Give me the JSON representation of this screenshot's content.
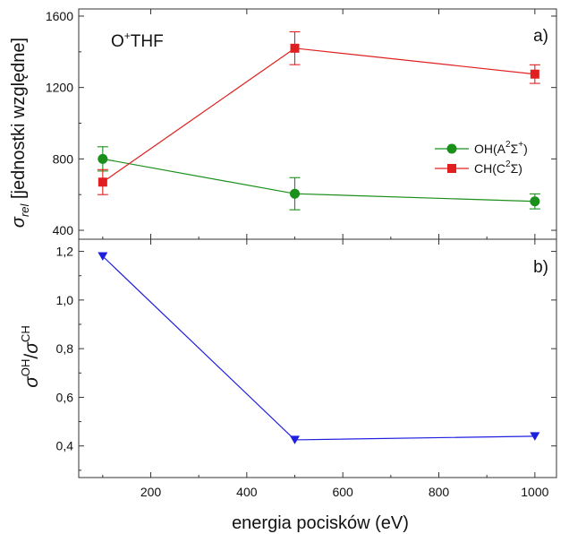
{
  "chart_data": [
    {
      "panel": "a)",
      "type": "line",
      "annotation": "O+THF",
      "ylabel": "σrel [jednostki względne]",
      "xlabel": "",
      "xlim": [
        50,
        1045
      ],
      "ylim": [
        350,
        1640
      ],
      "xticks": [
        200,
        400,
        600,
        800,
        1000
      ],
      "yticks": [
        400,
        800,
        1200,
        1600
      ],
      "ytick_labels": [
        "400",
        "800",
        "1200",
        "1600"
      ],
      "legend_position": "right",
      "series": [
        {
          "name": "OH(A2Σ+)",
          "color": "#1a8f1a",
          "marker": "circle",
          "x": [
            100,
            500,
            1000
          ],
          "y": [
            800,
            605,
            562
          ],
          "err": [
            68,
            90,
            42
          ]
        },
        {
          "name": "CH(C2Σ)",
          "color": "#e02020",
          "marker": "square",
          "x": [
            100,
            500,
            1000
          ],
          "y": [
            670,
            1420,
            1275
          ],
          "err": [
            70,
            92,
            52
          ]
        }
      ]
    },
    {
      "panel": "b)",
      "type": "line",
      "ylabel": "σOH/σCH",
      "xlabel": "energia pocisków (eV)",
      "xlim": [
        50,
        1045
      ],
      "ylim": [
        0.27,
        1.25
      ],
      "xticks": [
        200,
        400,
        600,
        800,
        1000
      ],
      "xtick_labels": [
        "200",
        "400",
        "600",
        "800",
        "1000"
      ],
      "yticks": [
        0.4,
        0.6,
        0.8,
        1.0,
        1.2
      ],
      "ytick_labels": [
        "0,4",
        "0,6",
        "0,8",
        "1,0",
        "1,2"
      ],
      "series": [
        {
          "color": "#1f1fe0",
          "marker": "triangle-down",
          "x": [
            100,
            500,
            1000
          ],
          "y": [
            1.18,
            0.425,
            0.44
          ]
        }
      ]
    }
  ]
}
